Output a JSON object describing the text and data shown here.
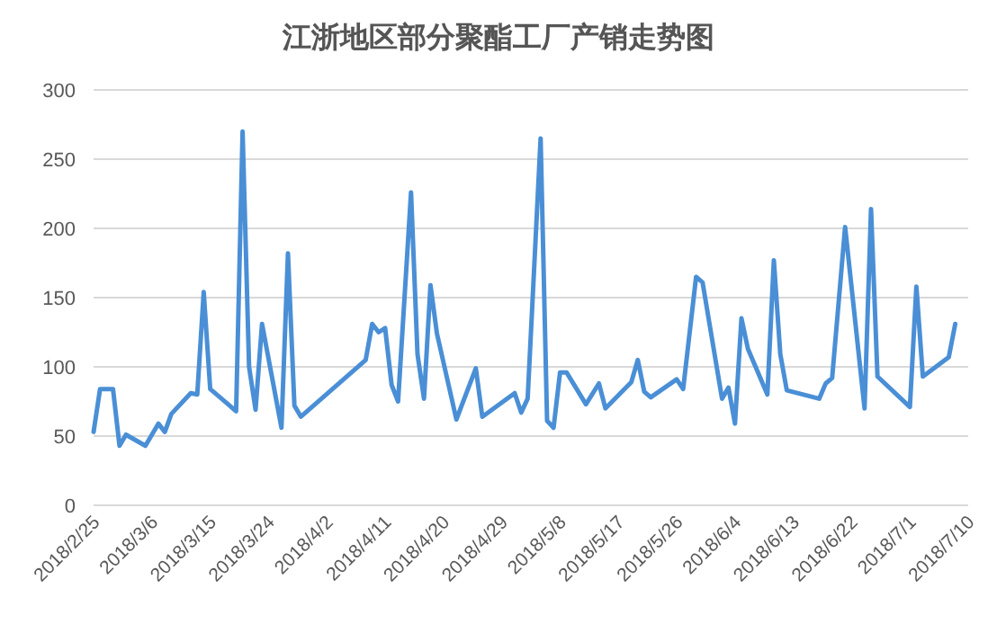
{
  "chart_data": {
    "type": "line",
    "title": "江浙地区部分聚酯工厂产销走势图",
    "x": [
      "2018-02-25",
      "2018-02-26",
      "2018-02-28",
      "2018-03-01",
      "2018-03-02",
      "2018-03-05",
      "2018-03-07",
      "2018-03-08",
      "2018-03-09",
      "2018-03-12",
      "2018-03-13",
      "2018-03-14",
      "2018-03-15",
      "2018-03-19",
      "2018-03-20",
      "2018-03-21",
      "2018-03-22",
      "2018-03-23",
      "2018-03-26",
      "2018-03-27",
      "2018-03-28",
      "2018-03-29",
      "2018-04-08",
      "2018-04-09",
      "2018-04-10",
      "2018-04-11",
      "2018-04-12",
      "2018-04-13",
      "2018-04-15",
      "2018-04-16",
      "2018-04-17",
      "2018-04-18",
      "2018-04-19",
      "2018-04-22",
      "2018-04-25",
      "2018-04-26",
      "2018-05-01",
      "2018-05-02",
      "2018-05-03",
      "2018-05-05",
      "2018-05-06",
      "2018-05-07",
      "2018-05-08",
      "2018-05-09",
      "2018-05-12",
      "2018-05-14",
      "2018-05-15",
      "2018-05-19",
      "2018-05-20",
      "2018-05-21",
      "2018-05-22",
      "2018-05-26",
      "2018-05-27",
      "2018-05-29",
      "2018-05-30",
      "2018-06-02",
      "2018-06-03",
      "2018-06-04",
      "2018-06-05",
      "2018-06-06",
      "2018-06-09",
      "2018-06-10",
      "2018-06-11",
      "2018-06-12",
      "2018-06-17",
      "2018-06-18",
      "2018-06-19",
      "2018-06-21",
      "2018-06-24",
      "2018-06-25",
      "2018-06-26",
      "2018-07-01",
      "2018-07-02",
      "2018-07-03",
      "2018-07-07",
      "2018-07-08"
    ],
    "series": [
      {
        "color": "#4a8fd6",
        "values": [
          53,
          84,
          84,
          43,
          51,
          43,
          59,
          53,
          66,
          81,
          80,
          154,
          84,
          68,
          270,
          100,
          69,
          131,
          56,
          182,
          72,
          64,
          105,
          131,
          125,
          128,
          87,
          75,
          226,
          109,
          77,
          159,
          124,
          62,
          99,
          64,
          81,
          67,
          77,
          265,
          61,
          56,
          96,
          96,
          73,
          88,
          70,
          89,
          105,
          82,
          78,
          91,
          84,
          165,
          161,
          77,
          85,
          59,
          135,
          113,
          80,
          177,
          109,
          83,
          77,
          88,
          92,
          201,
          70,
          214,
          93,
          71,
          158,
          93,
          107,
          131
        ]
      }
    ],
    "xlim": [
      "2018-02-25",
      "2018-07-10"
    ],
    "xticks": [
      {
        "value": "2018-02-25",
        "label": "2018/2/25"
      },
      {
        "value": "2018-03-06",
        "label": "2018/3/6"
      },
      {
        "value": "2018-03-15",
        "label": "2018/3/15"
      },
      {
        "value": "2018-03-24",
        "label": "2018/3/24"
      },
      {
        "value": "2018-04-02",
        "label": "2018/4/2"
      },
      {
        "value": "2018-04-11",
        "label": "2018/4/11"
      },
      {
        "value": "2018-04-20",
        "label": "2018/4/20"
      },
      {
        "value": "2018-04-29",
        "label": "2018/4/29"
      },
      {
        "value": "2018-05-08",
        "label": "2018/5/8"
      },
      {
        "value": "2018-05-17",
        "label": "2018/5/17"
      },
      {
        "value": "2018-05-26",
        "label": "2018/5/26"
      },
      {
        "value": "2018-06-04",
        "label": "2018/6/4"
      },
      {
        "value": "2018-06-13",
        "label": "2018/6/13"
      },
      {
        "value": "2018-06-22",
        "label": "2018/6/22"
      },
      {
        "value": "2018-07-01",
        "label": "2018/7/1"
      },
      {
        "value": "2018-07-10",
        "label": "2018/7/10"
      }
    ],
    "ylim": [
      0,
      300
    ],
    "yticks": [
      0,
      50,
      100,
      150,
      200,
      250,
      300
    ],
    "grid": "y",
    "line_style": "solid",
    "marker": "none"
  }
}
